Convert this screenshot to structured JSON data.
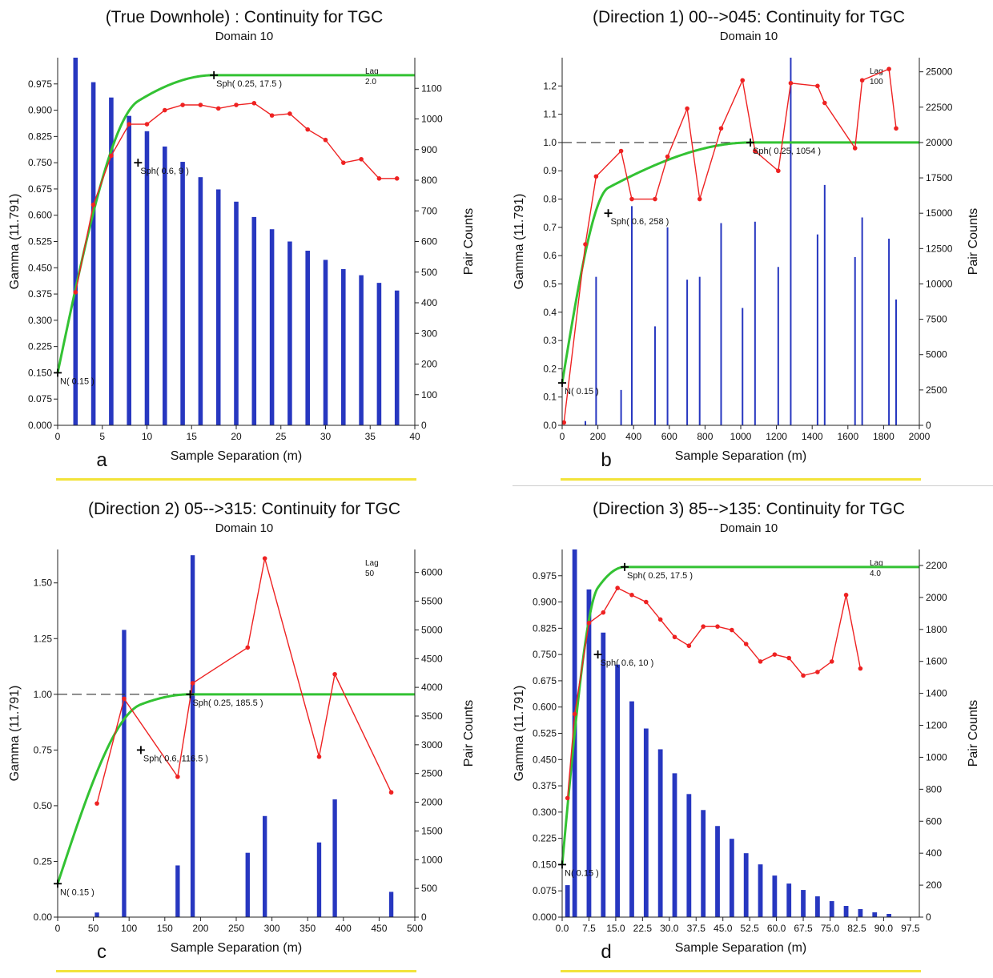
{
  "chart_data": [
    {
      "id": "a",
      "type": "bar+line",
      "title": "(True Downhole) :  Continuity for TGC",
      "subtitle": "Domain 10",
      "panel_label": "a",
      "xlabel": "Sample Separation (m)",
      "ylabel": "Gamma (11.791)",
      "y2label": "Pair Counts",
      "lag_label": "Lag",
      "lag_value": "2.0",
      "xlim": [
        0,
        40
      ],
      "ylim": [
        0,
        1.05
      ],
      "y2lim": [
        0,
        1200
      ],
      "xticks": [
        0,
        5,
        10,
        15,
        20,
        25,
        30,
        35,
        40
      ],
      "xtick_labels": [
        "0",
        "5",
        "10",
        "15",
        "20",
        "25",
        "30",
        "35",
        "40"
      ],
      "yticks": [
        0,
        0.075,
        0.15,
        0.225,
        0.3,
        0.375,
        0.45,
        0.525,
        0.6,
        0.675,
        0.75,
        0.825,
        0.9,
        0.975
      ],
      "ytick_labels": [
        "0.000",
        "0.075",
        "0.150",
        "0.225",
        "0.300",
        "0.375",
        "0.450",
        "0.525",
        "0.600",
        "0.675",
        "0.750",
        "0.825",
        "0.900",
        "0.975"
      ],
      "y2ticks": [
        0,
        100,
        200,
        300,
        400,
        500,
        600,
        700,
        800,
        900,
        1000,
        1100
      ],
      "y2tick_labels": [
        "0",
        "100",
        "200",
        "300",
        "400",
        "500",
        "600",
        "700",
        "800",
        "900",
        "1000",
        "1100"
      ],
      "bar_width": 0.5,
      "bars": {
        "x": [
          2,
          4,
          6,
          8,
          10,
          12,
          14,
          16,
          18,
          20,
          22,
          24,
          26,
          28,
          30,
          32,
          34,
          36,
          38
        ],
        "values": [
          1200,
          1120,
          1070,
          1010,
          960,
          910,
          860,
          810,
          770,
          730,
          680,
          640,
          600,
          570,
          540,
          510,
          490,
          465,
          440
        ]
      },
      "experimental": {
        "x": [
          2,
          4,
          6,
          8,
          10,
          12,
          14,
          16,
          18,
          20,
          22,
          24,
          26,
          28,
          30,
          32,
          34,
          36,
          38
        ],
        "y": [
          0.38,
          0.63,
          0.77,
          0.86,
          0.86,
          0.9,
          0.915,
          0.915,
          0.905,
          0.915,
          0.92,
          0.885,
          0.89,
          0.845,
          0.815,
          0.75,
          0.76,
          0.705,
          0.705
        ]
      },
      "model": {
        "nugget": 0.15,
        "structures": [
          {
            "c": 0.6,
            "a": 9
          },
          {
            "c": 0.25,
            "a": 17.5
          }
        ]
      },
      "sill_dashed": false,
      "annotations": [
        {
          "x": 0,
          "y": 0.15,
          "text": "N( 0.15 )"
        },
        {
          "x": 9,
          "y": 0.75,
          "text": "Sph( 0.6, 9 )"
        },
        {
          "x": 17.5,
          "y": 1.0,
          "text": "Sph( 0.25, 17.5 )"
        }
      ]
    },
    {
      "id": "b",
      "type": "bar+line",
      "title": "(Direction 1)  00-->045:  Continuity for TGC",
      "subtitle": "Domain 10",
      "panel_label": "b",
      "xlabel": "Sample Separation (m)",
      "ylabel": "Gamma (11.791)",
      "y2label": "Pair Counts",
      "lag_label": "Lag",
      "lag_value": "100",
      "xlim": [
        0,
        2000
      ],
      "ylim": [
        0,
        1.3
      ],
      "y2lim": [
        0,
        26000
      ],
      "xticks": [
        0,
        200,
        400,
        600,
        800,
        1000,
        1200,
        1400,
        1600,
        1800,
        2000
      ],
      "xtick_labels": [
        "0",
        "200",
        "400",
        "600",
        "800",
        "1000",
        "1200",
        "1400",
        "1600",
        "1800",
        "2000"
      ],
      "yticks": [
        0,
        0.1,
        0.2,
        0.3,
        0.4,
        0.5,
        0.6,
        0.7,
        0.8,
        0.9,
        1.0,
        1.1,
        1.2
      ],
      "ytick_labels": [
        "0.0",
        "0.1",
        "0.2",
        "0.3",
        "0.4",
        "0.5",
        "0.6",
        "0.7",
        "0.8",
        "0.9",
        "1.0",
        "1.1",
        "1.2"
      ],
      "y2ticks": [
        0,
        2500,
        5000,
        7500,
        10000,
        12500,
        15000,
        17500,
        20000,
        22500,
        25000
      ],
      "y2tick_labels": [
        "0",
        "2500",
        "5000",
        "7500",
        "10000",
        "12500",
        "15000",
        "17500",
        "20000",
        "22500",
        "25000"
      ],
      "bar_width": 8,
      "bars": {
        "x": [
          10,
          130,
          190,
          330,
          390,
          520,
          590,
          700,
          770,
          890,
          1010,
          1080,
          1210,
          1280,
          1430,
          1470,
          1640,
          1680,
          1830,
          1870
        ],
        "values": [
          0,
          300,
          10500,
          2500,
          15500,
          7000,
          14000,
          10300,
          10500,
          14300,
          8300,
          14400,
          11200,
          26000,
          13500,
          17000,
          11900,
          14700,
          13200,
          8900
        ]
      },
      "experimental": {
        "x": [
          10,
          130,
          190,
          330,
          390,
          520,
          590,
          700,
          770,
          890,
          1010,
          1080,
          1210,
          1280,
          1430,
          1470,
          1640,
          1680,
          1830,
          1870
        ],
        "y": [
          0.01,
          0.64,
          0.88,
          0.97,
          0.8,
          0.8,
          0.95,
          1.12,
          0.8,
          1.05,
          1.22,
          0.97,
          0.9,
          1.21,
          1.2,
          1.14,
          0.98,
          1.22,
          1.26,
          1.05
        ]
      },
      "model": {
        "nugget": 0.15,
        "structures": [
          {
            "c": 0.6,
            "a": 258
          },
          {
            "c": 0.25,
            "a": 1054
          }
        ]
      },
      "sill_dashed": true,
      "annotations": [
        {
          "x": 0,
          "y": 0.15,
          "text": "N( 0.15 )"
        },
        {
          "x": 258,
          "y": 0.75,
          "text": "Sph( 0.6, 258 )"
        },
        {
          "x": 1054,
          "y": 1.0,
          "text": "Sph( 0.25, 1054 )"
        }
      ]
    },
    {
      "id": "c",
      "type": "bar+line",
      "title": "(Direction 2)  05-->315:  Continuity for TGC",
      "subtitle": "Domain 10",
      "panel_label": "c",
      "xlabel": "Sample Separation (m)",
      "ylabel": "Gamma (11.791)",
      "y2label": "Pair Counts",
      "lag_label": "Lag",
      "lag_value": "50",
      "xlim": [
        0,
        500
      ],
      "ylim": [
        0,
        1.65
      ],
      "y2lim": [
        0,
        6400
      ],
      "xticks": [
        0,
        50,
        100,
        150,
        200,
        250,
        300,
        350,
        400,
        450,
        500
      ],
      "xtick_labels": [
        "0",
        "50",
        "100",
        "150",
        "200",
        "250",
        "300",
        "350",
        "400",
        "450",
        "500"
      ],
      "yticks": [
        0,
        0.25,
        0.5,
        0.75,
        1.0,
        1.25,
        1.5
      ],
      "ytick_labels": [
        "0.00",
        "0.25",
        "0.50",
        "0.75",
        "1.00",
        "1.25",
        "1.50"
      ],
      "y2ticks": [
        0,
        500,
        1000,
        1500,
        2000,
        2500,
        3000,
        3500,
        4000,
        4500,
        5000,
        5500,
        6000
      ],
      "y2tick_labels": [
        "0",
        "500",
        "1000",
        "1500",
        "2000",
        "2500",
        "3000",
        "3500",
        "4000",
        "4500",
        "5000",
        "5500",
        "6000"
      ],
      "bar_width": 6,
      "bars": {
        "x": [
          55,
          93,
          168,
          189,
          266,
          290,
          366,
          388,
          467
        ],
        "values": [
          80,
          5000,
          900,
          6300,
          1120,
          1760,
          1300,
          2050,
          440
        ]
      },
      "experimental": {
        "x": [
          55,
          93,
          168,
          189,
          266,
          290,
          366,
          388,
          467
        ],
        "y": [
          0.51,
          0.98,
          0.63,
          1.05,
          1.21,
          1.61,
          0.72,
          1.09,
          0.56
        ]
      },
      "model": {
        "nugget": 0.15,
        "structures": [
          {
            "c": 0.6,
            "a": 116.5
          },
          {
            "c": 0.25,
            "a": 185.5
          }
        ]
      },
      "sill_dashed": true,
      "annotations": [
        {
          "x": 0,
          "y": 0.15,
          "text": "N( 0.15 )"
        },
        {
          "x": 116.5,
          "y": 0.75,
          "text": "Sph( 0.6,  116.5 )"
        },
        {
          "x": 185.5,
          "y": 1.0,
          "text": "Sph( 0.25, 185.5 )"
        }
      ]
    },
    {
      "id": "d",
      "type": "bar+line",
      "title": "(Direction 3)  85-->135:  Continuity for TGC",
      "subtitle": "Domain 10",
      "panel_label": "d",
      "xlabel": "Sample Separation (m)",
      "ylabel": "Gamma (11.791)",
      "y2label": "Pair Counts",
      "lag_label": "Lag",
      "lag_value": "4.0",
      "xlim": [
        0,
        100
      ],
      "ylim": [
        0,
        1.05
      ],
      "y2lim": [
        0,
        2300
      ],
      "xticks": [
        0,
        7.5,
        15,
        22.5,
        30,
        37.5,
        45,
        52.5,
        60,
        67.5,
        75,
        82.5,
        90,
        97.5
      ],
      "xtick_labels": [
        "0.0",
        "7.5",
        "15.0",
        "22.5",
        "30.0",
        "37.5",
        "45.0",
        "52.5",
        "60.0",
        "67.5",
        "75.0",
        "82.5",
        "90.0",
        "97.5"
      ],
      "yticks": [
        0,
        0.075,
        0.15,
        0.225,
        0.3,
        0.375,
        0.45,
        0.525,
        0.6,
        0.675,
        0.75,
        0.825,
        0.9,
        0.975
      ],
      "ytick_labels": [
        "0.000",
        "0.075",
        "0.150",
        "0.225",
        "0.300",
        "0.375",
        "0.450",
        "0.525",
        "0.600",
        "0.675",
        "0.750",
        "0.825",
        "0.900",
        "0.975"
      ],
      "y2ticks": [
        0,
        200,
        400,
        600,
        800,
        1000,
        1200,
        1400,
        1600,
        1800,
        2000,
        2200
      ],
      "y2tick_labels": [
        "0",
        "200",
        "400",
        "600",
        "800",
        "1000",
        "1200",
        "1400",
        "1600",
        "1800",
        "2000",
        "2200"
      ],
      "bar_width": 1.3,
      "bars": {
        "x": [
          1.5,
          3.5,
          7.5,
          11.5,
          15.5,
          19.5,
          23.5,
          27.5,
          31.5,
          35.5,
          39.5,
          43.5,
          47.5,
          51.5,
          55.5,
          59.5,
          63.5,
          67.5,
          71.5,
          75.5,
          79.5,
          83.5,
          87.5,
          91.5
        ],
        "values": [
          200,
          2300,
          2050,
          1780,
          1580,
          1350,
          1180,
          1050,
          900,
          770,
          670,
          570,
          490,
          400,
          330,
          260,
          210,
          170,
          130,
          100,
          70,
          50,
          30,
          20
        ]
      },
      "experimental": {
        "x": [
          1.5,
          3.5,
          7.5,
          11.5,
          15.5,
          19.5,
          23.5,
          27.5,
          31.5,
          35.5,
          39.5,
          43.5,
          47.5,
          51.5,
          55.5,
          59.5,
          63.5,
          67.5,
          71.5,
          75.5,
          79.5,
          83.5
        ],
        "y": [
          0.34,
          0.58,
          0.84,
          0.87,
          0.94,
          0.92,
          0.9,
          0.85,
          0.8,
          0.775,
          0.83,
          0.83,
          0.82,
          0.78,
          0.73,
          0.75,
          0.74,
          0.69,
          0.7,
          0.73,
          0.92,
          0.71
        ]
      },
      "model": {
        "nugget": 0.15,
        "structures": [
          {
            "c": 0.6,
            "a": 10
          },
          {
            "c": 0.25,
            "a": 17.5
          }
        ]
      },
      "sill_dashed": false,
      "annotations": [
        {
          "x": 0,
          "y": 0.15,
          "text": "N( 0.15 )"
        },
        {
          "x": 10,
          "y": 0.75,
          "text": "Sph( 0.6, 10 )"
        },
        {
          "x": 17.5,
          "y": 1.0,
          "text": "Sph( 0.25, 17.5 )"
        }
      ]
    }
  ]
}
